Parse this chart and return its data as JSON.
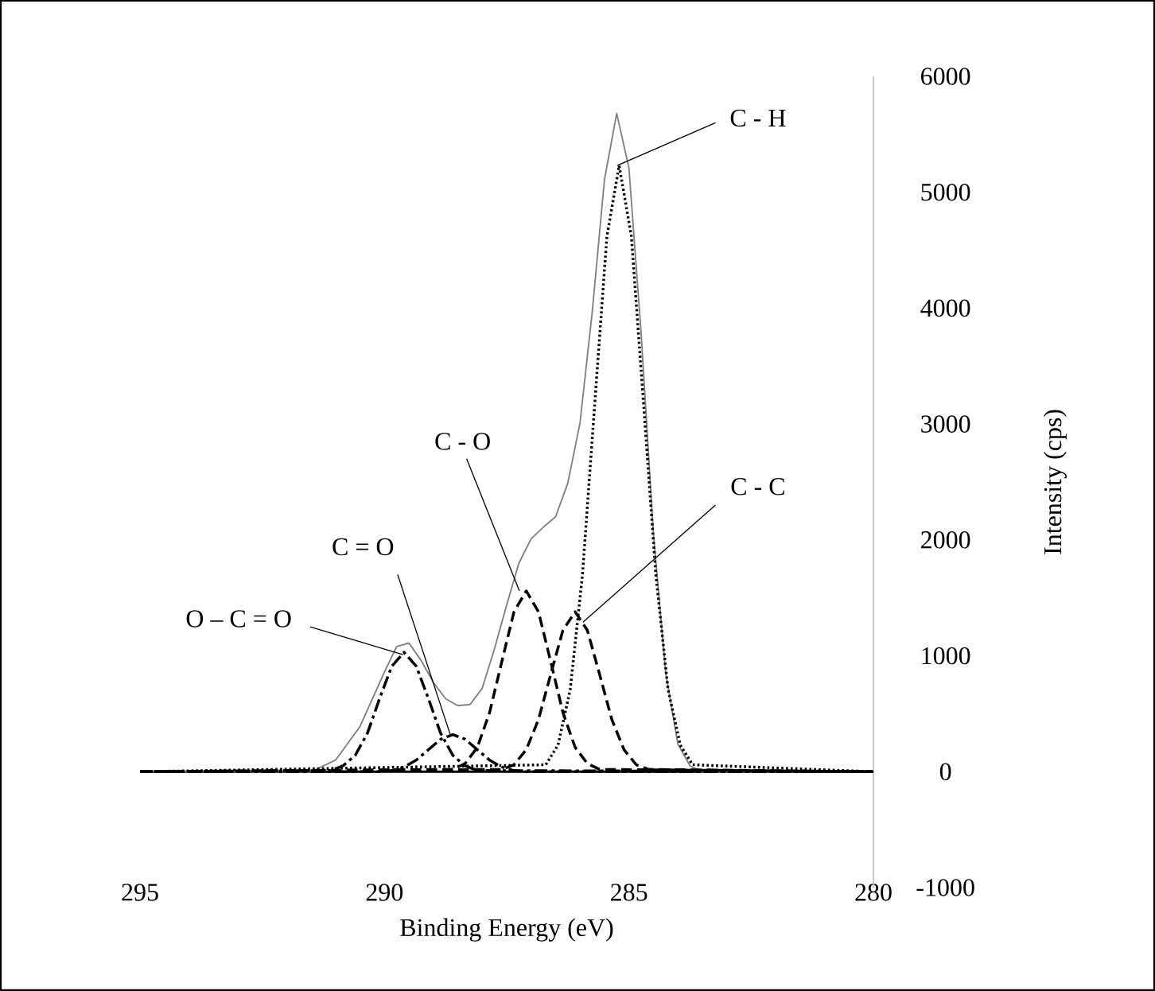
{
  "chart_data": {
    "type": "line",
    "xlabel": "Binding Energy (eV)",
    "ylabel": "Intensity (cps)",
    "xlim": [
      295,
      280
    ],
    "ylim": [
      -1000,
      6000
    ],
    "xticks": [
      295,
      290,
      285,
      280
    ],
    "yticks": [
      -1000,
      0,
      1000,
      2000,
      3000,
      4000,
      5000,
      6000
    ],
    "series": [
      {
        "color": "#808080",
        "line_style": "solid",
        "x": [
          295,
          291.5,
          291,
          290.5,
          290,
          289.75,
          289.5,
          289.25,
          289,
          288.75,
          288.5,
          288.25,
          288,
          287.75,
          287.5,
          287.25,
          287,
          286.75,
          286.5,
          286.25,
          286,
          285.75,
          285.5,
          285.25,
          285,
          284.75,
          284.5,
          284.25,
          284,
          283.75,
          283.5,
          280
        ],
        "values": [
          0,
          0,
          100,
          390,
          860,
          1080,
          1110,
          960,
          770,
          630,
          570,
          580,
          720,
          1060,
          1440,
          1800,
          2010,
          2110,
          2200,
          2490,
          3010,
          3970,
          5110,
          5680,
          5210,
          3780,
          2060,
          860,
          240,
          50,
          0,
          0
        ]
      },
      {
        "name": "C - H",
        "color": "#000000",
        "line_style": "dotted",
        "x": [
          295,
          286.7,
          286.45,
          286.2,
          285.95,
          285.7,
          285.45,
          285.2,
          284.95,
          284.7,
          284.45,
          284.2,
          283.95,
          283.7,
          280
        ],
        "values": [
          0,
          60,
          230,
          710,
          1700,
          3170,
          4620,
          5230,
          4620,
          3170,
          1700,
          710,
          230,
          60,
          0
        ]
      },
      {
        "name": "C - C",
        "color": "#000000",
        "line_style": "dashed",
        "x": [
          295,
          287.6,
          287.35,
          287.1,
          286.85,
          286.6,
          286.35,
          286.1,
          285.85,
          285.6,
          285.35,
          285.1,
          284.85,
          284.6,
          280
        ],
        "values": [
          0,
          20,
          60,
          190,
          450,
          840,
          1220,
          1380,
          1220,
          840,
          450,
          190,
          60,
          20,
          0
        ]
      },
      {
        "name": "C - O",
        "color": "#000000",
        "line_style": "dashed",
        "x": [
          295,
          288.6,
          288.35,
          288.1,
          287.85,
          287.6,
          287.35,
          287.1,
          286.85,
          286.6,
          286.35,
          286.1,
          285.85,
          285.6,
          280
        ],
        "values": [
          0,
          20,
          70,
          210,
          510,
          950,
          1380,
          1560,
          1380,
          950,
          510,
          210,
          70,
          20,
          0
        ]
      },
      {
        "name": "C = O",
        "color": "#000000",
        "line_style": "dashdot",
        "x": [
          295,
          290.1,
          289.85,
          289.6,
          289.35,
          289.1,
          288.85,
          288.6,
          288.35,
          288.1,
          287.85,
          287.6,
          287.35,
          287.1,
          280
        ],
        "values": [
          0,
          0,
          10,
          40,
          100,
          190,
          280,
          320,
          280,
          190,
          100,
          40,
          10,
          0,
          0
        ]
      },
      {
        "name": "O – C = O",
        "color": "#000000",
        "line_style": "dashdot",
        "x": [
          295,
          291.1,
          290.85,
          290.6,
          290.35,
          290.1,
          289.85,
          289.6,
          289.35,
          289.1,
          288.85,
          288.6,
          288.35,
          288.1,
          280
        ],
        "values": [
          0,
          10,
          50,
          140,
          330,
          630,
          910,
          1030,
          910,
          630,
          330,
          140,
          50,
          10,
          0
        ]
      }
    ]
  }
}
